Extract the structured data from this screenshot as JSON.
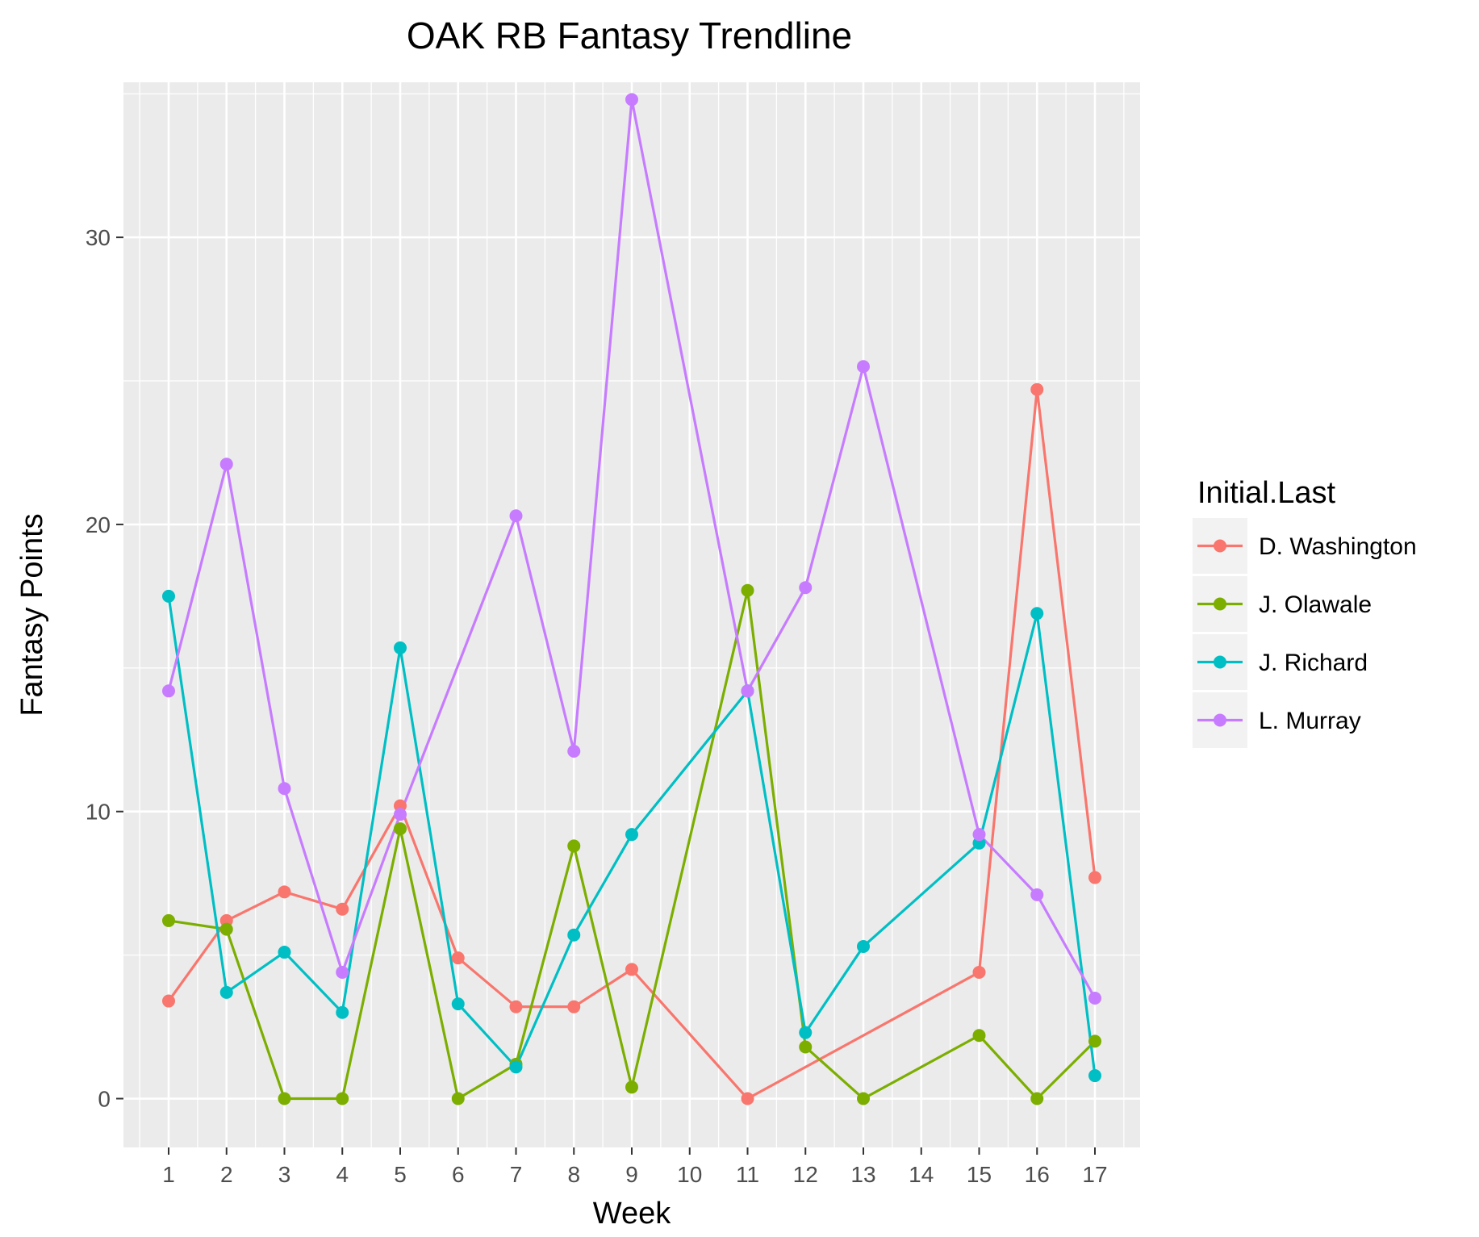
{
  "chart_data": {
    "type": "line",
    "title": "OAK RB Fantasy Trendline",
    "xlabel": "Week",
    "ylabel": "Fantasy Points",
    "categories": [
      "1",
      "2",
      "3",
      "4",
      "5",
      "6",
      "7",
      "8",
      "9",
      "10",
      "11",
      "12",
      "13",
      "14",
      "15",
      "16",
      "17"
    ],
    "ylim": [
      -1.7,
      35.4
    ],
    "yticks": [
      0,
      10,
      20,
      30
    ],
    "grid": true,
    "legend": {
      "title": "Initial.Last",
      "position": "right"
    },
    "series": [
      {
        "name": "D. Washington",
        "color": "#F8766D",
        "points": [
          [
            1,
            3.4
          ],
          [
            2,
            6.2
          ],
          [
            3,
            7.2
          ],
          [
            4,
            6.6
          ],
          [
            5,
            10.2
          ],
          [
            6,
            4.9
          ],
          [
            7,
            3.2
          ],
          [
            8,
            3.2
          ],
          [
            9,
            4.5
          ],
          [
            11,
            0
          ],
          [
            15,
            4.4
          ],
          [
            16,
            24.7
          ],
          [
            17,
            7.7
          ]
        ]
      },
      {
        "name": "J. Olawale",
        "color": "#7CAE00",
        "points": [
          [
            1,
            6.2
          ],
          [
            2,
            5.9
          ],
          [
            3,
            0
          ],
          [
            4,
            0
          ],
          [
            5,
            9.4
          ],
          [
            6,
            0
          ],
          [
            7,
            1.2
          ],
          [
            8,
            8.8
          ],
          [
            9,
            0.4
          ],
          [
            11,
            17.7
          ],
          [
            12,
            1.8
          ],
          [
            13,
            0
          ],
          [
            15,
            2.2
          ],
          [
            16,
            0
          ],
          [
            17,
            2.0
          ]
        ]
      },
      {
        "name": "J. Richard",
        "color": "#00BFC4",
        "points": [
          [
            1,
            17.5
          ],
          [
            2,
            3.7
          ],
          [
            3,
            5.1
          ],
          [
            4,
            3.0
          ],
          [
            5,
            15.7
          ],
          [
            6,
            3.3
          ],
          [
            7,
            1.1
          ],
          [
            8,
            5.7
          ],
          [
            9,
            9.2
          ],
          [
            11,
            14.2
          ],
          [
            12,
            2.3
          ],
          [
            13,
            5.3
          ],
          [
            15,
            8.9
          ],
          [
            16,
            16.9
          ],
          [
            17,
            0.8
          ]
        ]
      },
      {
        "name": "L. Murray",
        "color": "#C77CFF",
        "points": [
          [
            1,
            14.2
          ],
          [
            2,
            22.1
          ],
          [
            3,
            10.8
          ],
          [
            4,
            4.4
          ],
          [
            5,
            9.9
          ],
          [
            7,
            20.3
          ],
          [
            8,
            12.1
          ],
          [
            9,
            34.8
          ],
          [
            11,
            14.2
          ],
          [
            12,
            17.8
          ],
          [
            13,
            25.5
          ],
          [
            15,
            9.2
          ],
          [
            16,
            7.1
          ],
          [
            17,
            3.5
          ]
        ]
      }
    ]
  }
}
